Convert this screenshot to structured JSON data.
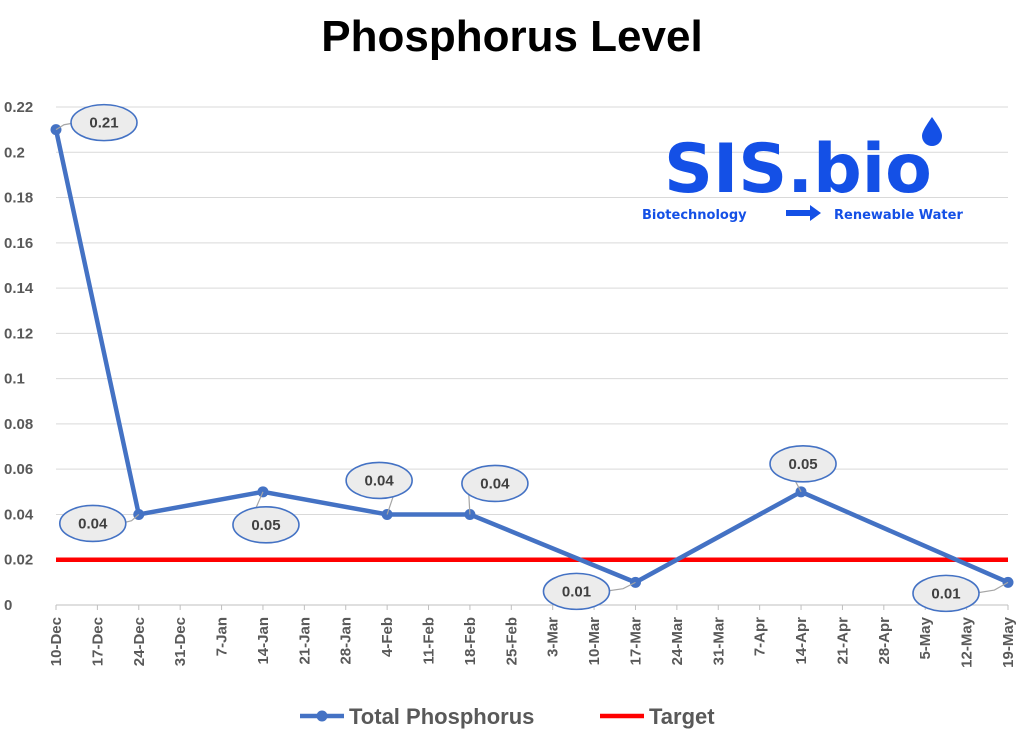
{
  "chart_data": {
    "type": "line",
    "title": "Phosphorus Level",
    "x": [
      "10-Dec",
      "17-Dec",
      "24-Dec",
      "31-Dec",
      "7-Jan",
      "14-Jan",
      "21-Jan",
      "28-Jan",
      "4-Feb",
      "11-Feb",
      "18-Feb",
      "25-Feb",
      "3-Mar",
      "10-Mar",
      "17-Mar",
      "24-Mar",
      "31-Mar",
      "7-Apr",
      "14-Apr",
      "21-Apr",
      "28-Apr",
      "5-May",
      "12-May",
      "19-May"
    ],
    "ylim": [
      0,
      0.22
    ],
    "yticks": [
      "0",
      "0.02",
      "0.04",
      "0.06",
      "0.08",
      "0.1",
      "0.12",
      "0.14",
      "0.16",
      "0.18",
      "0.2",
      "0.22"
    ],
    "grid": true,
    "legend_position": "bottom",
    "series": [
      {
        "name": "Total Phosphorus",
        "color": "#4472C4",
        "points": [
          {
            "x": "10-Dec",
            "y": 0.21,
            "label": "0.21"
          },
          {
            "x": "24-Dec",
            "y": 0.04,
            "label": "0.04"
          },
          {
            "x": "14-Jan",
            "y": 0.05,
            "label": "0.05"
          },
          {
            "x": "4-Feb",
            "y": 0.04,
            "label": "0.04"
          },
          {
            "x": "18-Feb",
            "y": 0.04,
            "label": "0.04"
          },
          {
            "x": "17-Mar",
            "y": 0.01,
            "label": "0.01"
          },
          {
            "x": "14-Apr",
            "y": 0.05,
            "label": "0.05"
          },
          {
            "x": "19-May",
            "y": 0.01,
            "label": "0.01"
          }
        ]
      },
      {
        "name": "Target",
        "color": "#FF0000",
        "constant": 0.02
      }
    ]
  },
  "logo": {
    "name": "SIS.bio",
    "tagline_left": "Biotechnology",
    "tagline_right": "Renewable Water",
    "color": "#1450E6"
  }
}
